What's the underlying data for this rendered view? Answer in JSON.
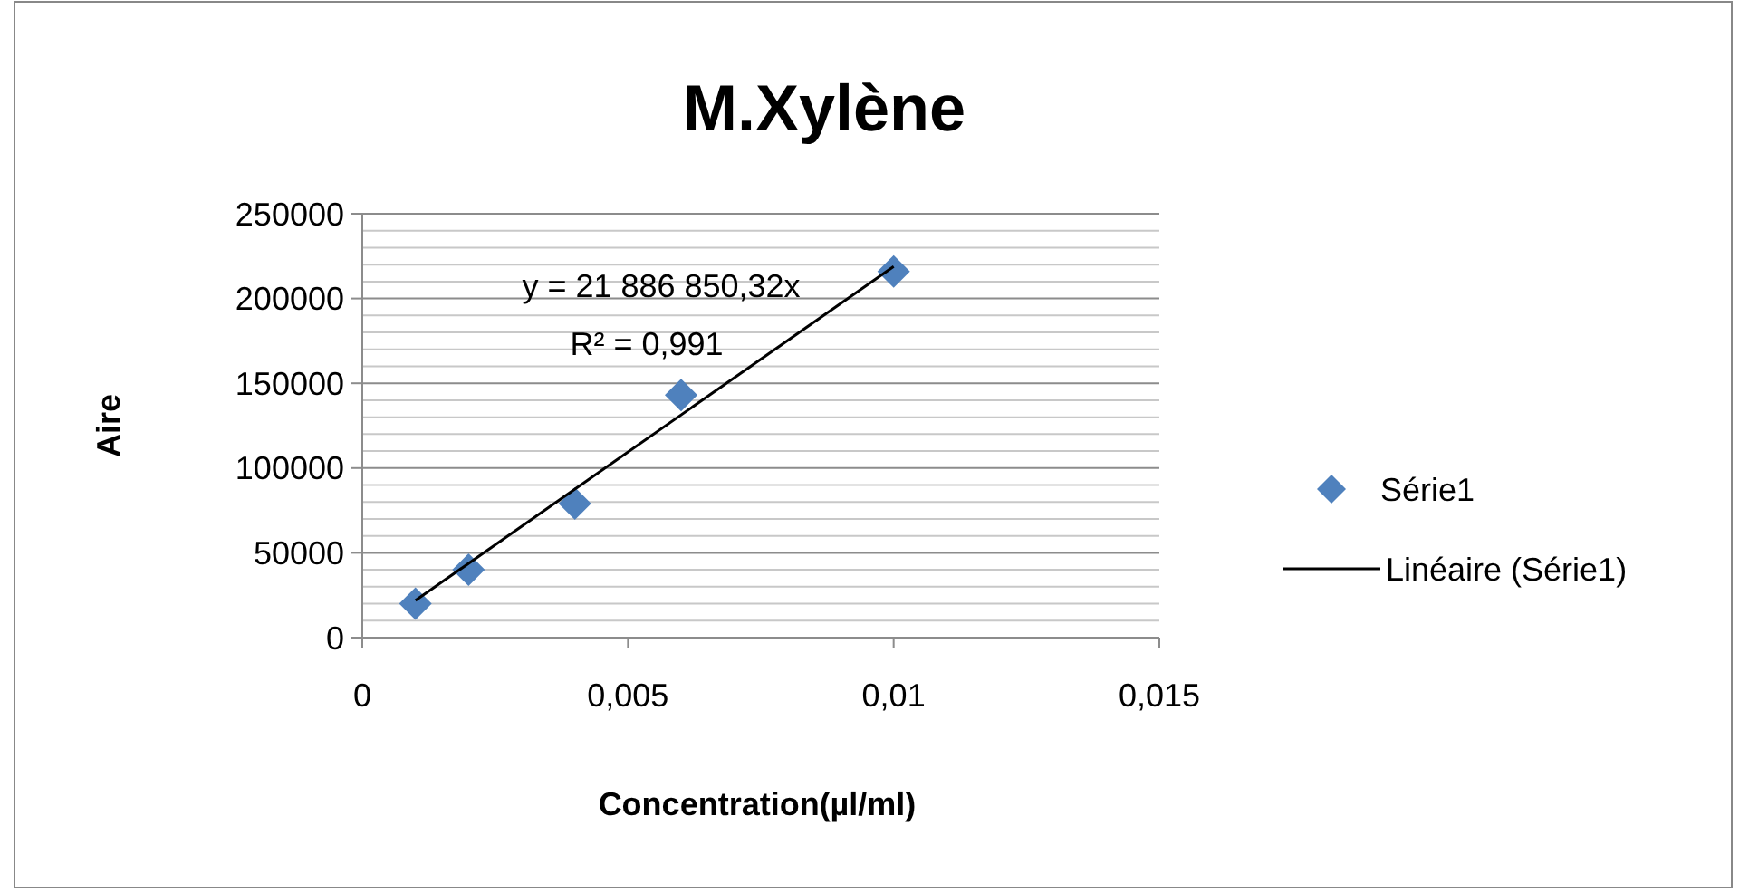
{
  "chart_data": {
    "type": "scatter",
    "title": "M.Xylène",
    "xlabel": "Concentration(µl/ml)",
    "ylabel": "Aire",
    "xlim": [
      0,
      0.015
    ],
    "xticks": [
      0,
      {
        "value": 0.005,
        "label": "0,005"
      },
      {
        "value": 0.01,
        "label": "0,01"
      },
      {
        "value": 0.015,
        "label": "0,015"
      }
    ],
    "ylim": [
      0,
      250000
    ],
    "yticks": [
      0,
      {
        "value": 10000,
        "label": null
      },
      {
        "value": 20000,
        "label": null
      },
      {
        "value": 30000,
        "label": null
      },
      {
        "value": 40000,
        "label": null
      },
      50000,
      {
        "value": 60000,
        "label": null
      },
      {
        "value": 70000,
        "label": null
      },
      {
        "value": 80000,
        "label": null
      },
      {
        "value": 90000,
        "label": null
      },
      100000,
      {
        "value": 110000,
        "label": null
      },
      {
        "value": 120000,
        "label": null
      },
      {
        "value": 130000,
        "label": null
      },
      {
        "value": 140000,
        "label": null
      },
      150000,
      {
        "value": 160000,
        "label": null
      },
      {
        "value": 170000,
        "label": null
      },
      {
        "value": 180000,
        "label": null
      },
      {
        "value": 190000,
        "label": null
      },
      200000,
      {
        "value": 210000,
        "label": null
      },
      {
        "value": 220000,
        "label": null
      },
      {
        "value": 230000,
        "label": null
      },
      {
        "value": 240000,
        "label": null
      },
      250000
    ],
    "grid": "y",
    "legend": "right",
    "annotations": [
      "y = 21 886 850,32x",
      "R² = 0,991"
    ],
    "series": [
      {
        "name": "Série1",
        "type": "scatter",
        "marker": "diamond",
        "color": "#4f81bd",
        "x": [
          0.001,
          0.002,
          0.004,
          0.006,
          0.01
        ],
        "values": [
          20000,
          40000,
          79000,
          143000,
          216000
        ]
      },
      {
        "name": "Linéaire (Série1)",
        "type": "line",
        "marker": "none",
        "line_style": "solid",
        "color": "#000000",
        "x": [
          0.001,
          0.01
        ],
        "values": [
          21900,
          218900
        ]
      }
    ]
  }
}
